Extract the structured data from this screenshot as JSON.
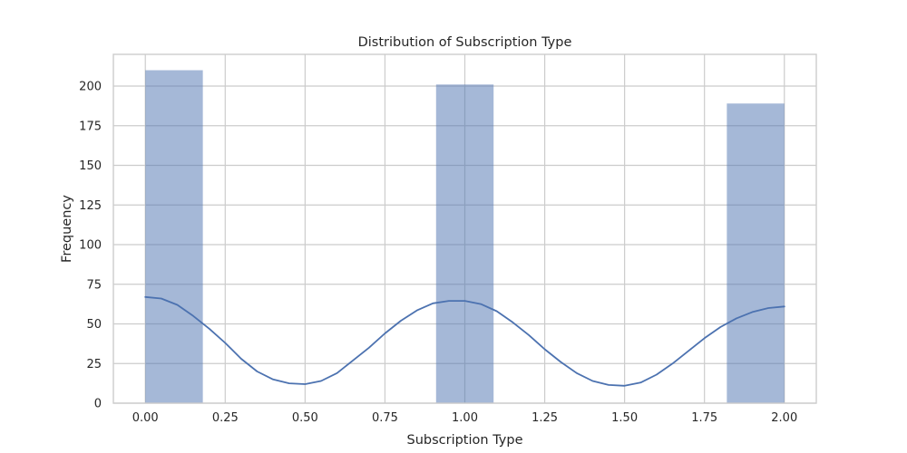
{
  "chart_data": {
    "type": "bar",
    "title": "Distribution of Subscription Type",
    "xlabel": "Subscription Type",
    "ylabel": "Frequency",
    "xlim": [
      -0.1,
      2.1
    ],
    "ylim": [
      0,
      220
    ],
    "xticks": [
      "0.00",
      "0.25",
      "0.50",
      "0.75",
      "1.00",
      "1.25",
      "1.50",
      "1.75",
      "2.00"
    ],
    "yticks": [
      "0",
      "25",
      "50",
      "75",
      "100",
      "125",
      "150",
      "175",
      "200"
    ],
    "grid": true,
    "legend": "none",
    "bar_color": "#4c72b0",
    "bar_opacity": 0.5,
    "bins": [
      {
        "x0": 0.0,
        "x1": 0.18,
        "count": 210
      },
      {
        "x0": 0.91,
        "x1": 1.09,
        "count": 201
      },
      {
        "x0": 1.82,
        "x1": 2.0,
        "count": 189
      }
    ],
    "kde": {
      "color": "#4c72b0",
      "x": [
        0.0,
        0.05,
        0.1,
        0.15,
        0.2,
        0.25,
        0.3,
        0.35,
        0.4,
        0.45,
        0.5,
        0.55,
        0.6,
        0.65,
        0.7,
        0.75,
        0.8,
        0.85,
        0.9,
        0.95,
        1.0,
        1.05,
        1.1,
        1.15,
        1.2,
        1.25,
        1.3,
        1.35,
        1.4,
        1.45,
        1.5,
        1.55,
        1.6,
        1.65,
        1.7,
        1.75,
        1.8,
        1.85,
        1.9,
        1.95,
        2.0
      ],
      "y": [
        67,
        66,
        62,
        55,
        47,
        38,
        28,
        20,
        15,
        12.5,
        12,
        14,
        19,
        27,
        35,
        44,
        52,
        58.5,
        63,
        64.5,
        64.5,
        62.5,
        58,
        51,
        43,
        34,
        26,
        19,
        14,
        11.5,
        11,
        13,
        18,
        25,
        33,
        41,
        48,
        53.5,
        57.5,
        60,
        61
      ]
    }
  }
}
